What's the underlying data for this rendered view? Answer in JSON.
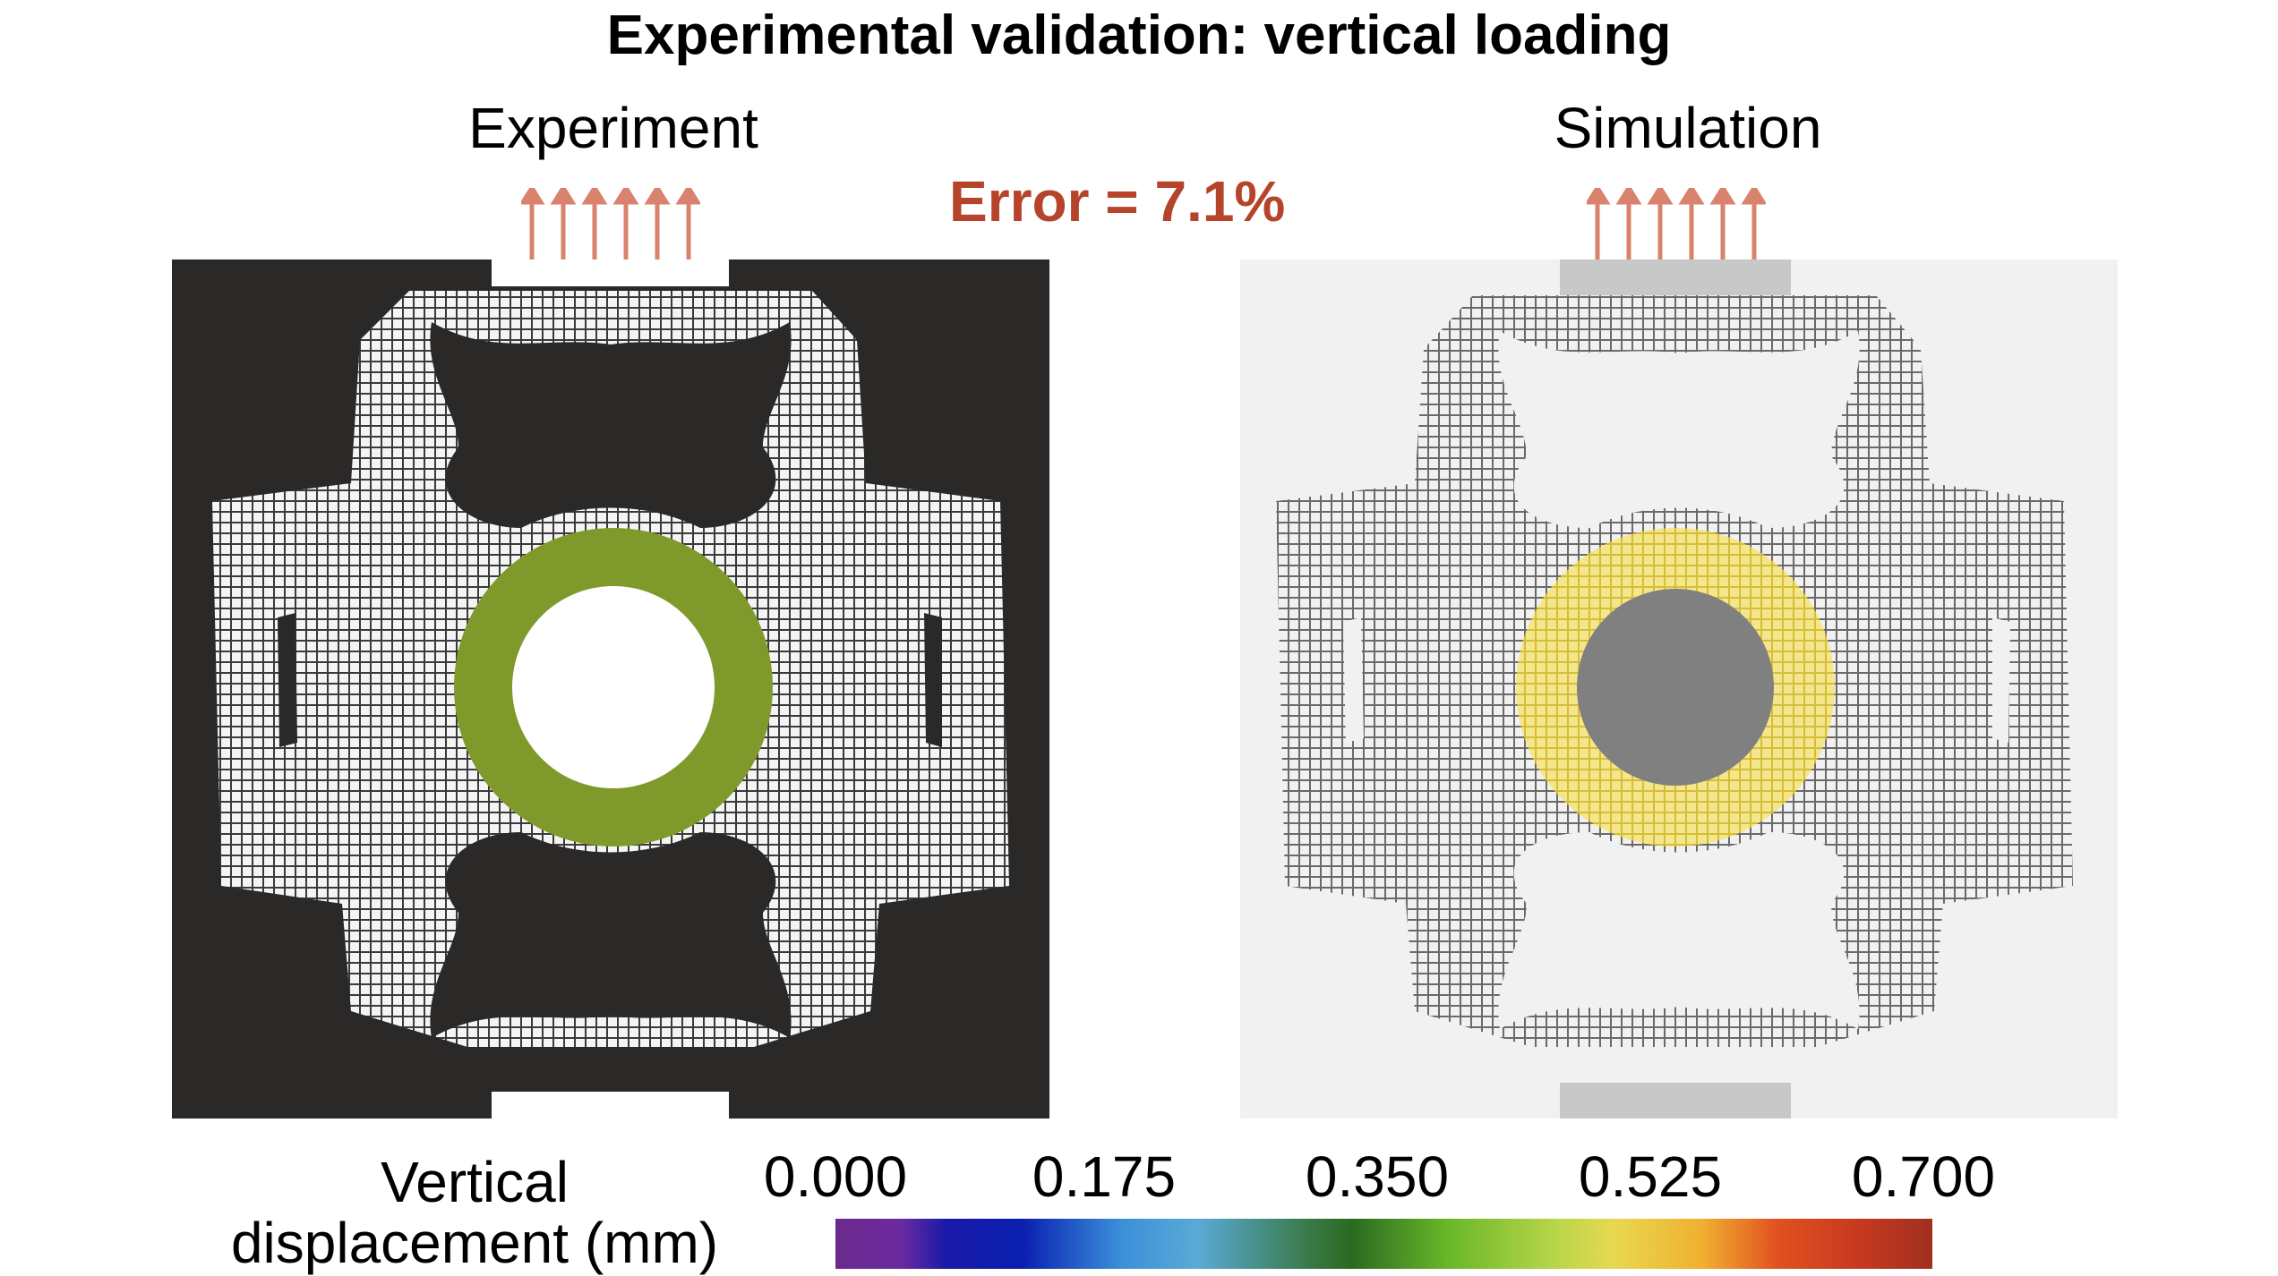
{
  "title": "Experimental validation: vertical loading",
  "experiment_label": "Experiment",
  "simulation_label": "Simulation",
  "error_text": "Error = 7.1%",
  "colorbar": {
    "label_line1": "Vertical",
    "label_line2": "displacement (mm)",
    "ticks": [
      "0.000",
      "0.175",
      "0.350",
      "0.525",
      "0.700"
    ]
  },
  "colors": {
    "arrow": "#d9836e",
    "error": "#b5442a",
    "exp_ring": "#7f9a2a",
    "sim_ring": "#ecd65a"
  }
}
